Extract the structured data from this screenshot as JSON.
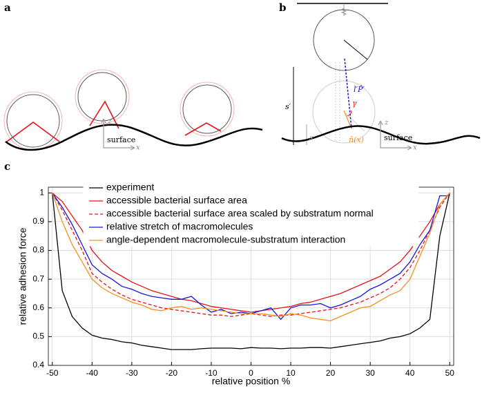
{
  "panels": {
    "a": {
      "label": "a",
      "surface": "surface",
      "z": "z",
      "x": "x"
    },
    "b": {
      "label": "b",
      "s_prime": "s′",
      "s": "s",
      "lp": "l′P̂′",
      "gamma": "γ",
      "normal": "n̂(x)",
      "surface": "surface",
      "z": "z",
      "x": "x"
    },
    "c": {
      "label": "c"
    }
  },
  "chart_data": {
    "type": "line",
    "xlabel": "relative position %",
    "ylabel": "relative adhesion force",
    "x": [
      -50,
      -47.5,
      -45,
      -42.5,
      -40,
      -37.5,
      -35,
      -32.5,
      -30,
      -27.5,
      -25,
      -22.5,
      -20,
      -17.5,
      -15,
      -12.5,
      -10,
      -7.5,
      -5,
      -2.5,
      0,
      2.5,
      5,
      7.5,
      10,
      12.5,
      15,
      17.5,
      20,
      22.5,
      25,
      27.5,
      30,
      32.5,
      35,
      37.5,
      40,
      42.5,
      45,
      47.5,
      50
    ],
    "xlim": [
      -51,
      51
    ],
    "xticks": [
      -50,
      -40,
      -30,
      -20,
      -10,
      0,
      10,
      20,
      30,
      40,
      50
    ],
    "ylim": [
      0.4,
      1.02
    ],
    "yticks": [
      0.4,
      0.5,
      0.6,
      0.7,
      0.8,
      0.9,
      1
    ],
    "grid": true,
    "legend": "upper center",
    "series": [
      {
        "name": "experiment",
        "color": "#000000",
        "style": "solid",
        "values": [
          1,
          0.66,
          0.57,
          0.53,
          0.505,
          0.495,
          0.49,
          0.482,
          0.478,
          0.47,
          0.465,
          0.46,
          0.455,
          0.455,
          0.455,
          0.458,
          0.46,
          0.46,
          0.46,
          0.458,
          0.462,
          0.46,
          0.46,
          0.458,
          0.46,
          0.46,
          0.462,
          0.462,
          0.46,
          0.465,
          0.47,
          0.475,
          0.48,
          0.485,
          0.495,
          0.5,
          0.51,
          0.53,
          0.56,
          0.85,
          1
        ]
      },
      {
        "name": "accessible bacterial surface area",
        "color": "#e8101a",
        "style": "solid",
        "values": [
          1,
          0.97,
          0.92,
          0.87,
          0.8,
          0.76,
          0.73,
          0.71,
          0.69,
          0.675,
          0.66,
          0.65,
          0.64,
          0.63,
          0.625,
          0.615,
          0.605,
          0.6,
          0.595,
          0.59,
          0.585,
          0.59,
          0.595,
          0.6,
          0.605,
          0.615,
          0.62,
          0.63,
          0.64,
          0.65,
          0.665,
          0.68,
          0.695,
          0.71,
          0.735,
          0.76,
          0.8,
          0.85,
          0.9,
          0.96,
          1
        ]
      },
      {
        "name": "accessible bacterial surface area scaled by substratum normal",
        "color": "#e8101a",
        "style": "dashed",
        "values": [
          1,
          0.94,
          0.87,
          0.8,
          0.72,
          0.69,
          0.665,
          0.645,
          0.63,
          0.62,
          0.61,
          0.6,
          0.595,
          0.59,
          0.585,
          0.58,
          0.575,
          0.575,
          0.57,
          0.575,
          0.58,
          0.575,
          0.57,
          0.575,
          0.575,
          0.58,
          0.585,
          0.59,
          0.595,
          0.6,
          0.61,
          0.62,
          0.635,
          0.65,
          0.67,
          0.7,
          0.74,
          0.8,
          0.87,
          0.95,
          1
        ]
      },
      {
        "name": "relative stretch of macromolecules",
        "color": "#1515e0",
        "style": "solid",
        "values": [
          1,
          0.95,
          0.89,
          0.82,
          0.75,
          0.72,
          0.7,
          0.675,
          0.665,
          0.65,
          0.64,
          0.635,
          0.63,
          0.63,
          0.64,
          0.61,
          0.585,
          0.595,
          0.58,
          0.585,
          0.58,
          0.59,
          0.6,
          0.56,
          0.6,
          0.61,
          0.61,
          0.615,
          0.6,
          0.61,
          0.625,
          0.64,
          0.665,
          0.68,
          0.7,
          0.72,
          0.76,
          0.82,
          0.87,
          0.99,
          0.99
        ]
      },
      {
        "name": "angle-dependent macromolecule-substratum interaction",
        "color": "#f5901e",
        "style": "solid",
        "values": [
          1,
          0.9,
          0.82,
          0.76,
          0.7,
          0.67,
          0.65,
          0.635,
          0.62,
          0.61,
          0.595,
          0.59,
          0.6,
          0.605,
          0.595,
          0.6,
          0.595,
          0.59,
          0.585,
          0.58,
          0.58,
          0.58,
          0.575,
          0.57,
          0.58,
          0.575,
          0.565,
          0.56,
          0.555,
          0.57,
          0.585,
          0.6,
          0.605,
          0.625,
          0.645,
          0.66,
          0.7,
          0.78,
          0.86,
          0.96,
          1
        ]
      }
    ]
  }
}
